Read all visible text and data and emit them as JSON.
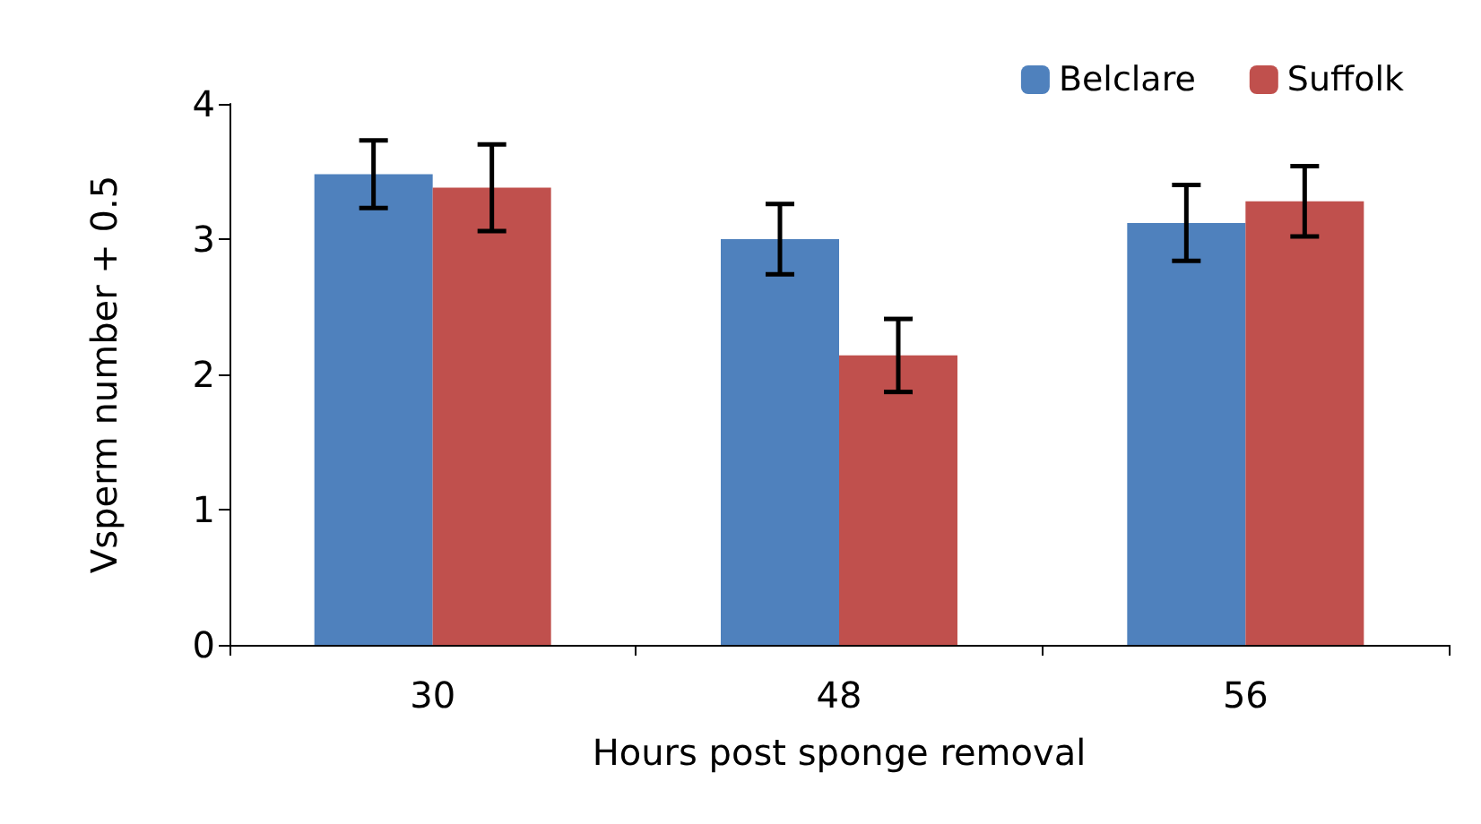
{
  "chart_data": {
    "type": "bar",
    "xlabel": "Hours post sponge removal",
    "ylabel": "Vsperm number + 0.5",
    "categories": [
      "30",
      "48",
      "56"
    ],
    "series": [
      {
        "name": "Belclare",
        "color": "#4f81bd",
        "values": [
          3.48,
          3.0,
          3.12
        ],
        "errors": [
          0.25,
          0.26,
          0.28
        ]
      },
      {
        "name": "Suffolk",
        "color": "#c0504d",
        "values": [
          3.38,
          2.14,
          3.28
        ],
        "errors": [
          0.32,
          0.27,
          0.26
        ]
      }
    ],
    "ylim": [
      0,
      4
    ],
    "yticks": [
      0,
      1,
      2,
      3,
      4
    ],
    "grid": false,
    "legend": "top right"
  }
}
